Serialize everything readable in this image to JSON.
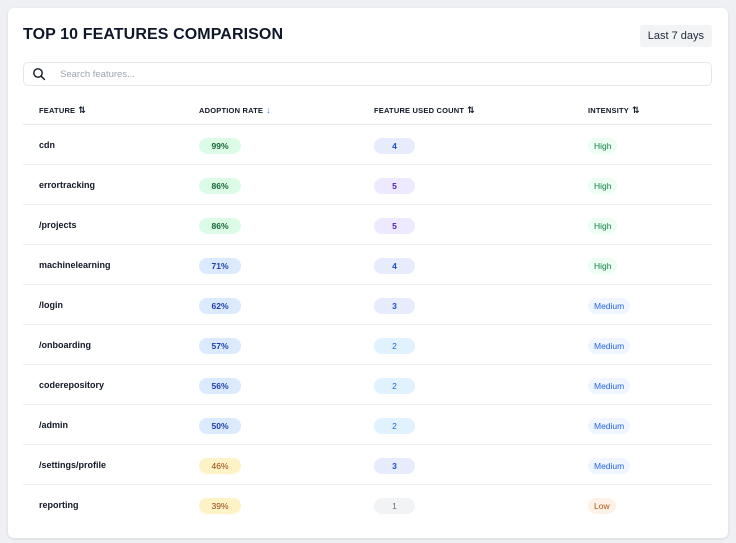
{
  "header": {
    "title": "TOP 10 FEATURES COMPARISON",
    "range_label": "Last 7 days"
  },
  "search": {
    "placeholder": "Search features...",
    "value": ""
  },
  "table": {
    "columns": [
      {
        "label": "FEATURE",
        "sort": "⇅"
      },
      {
        "label": "ADOPTION RATE",
        "sort": "↓"
      },
      {
        "label": "FEATURE USED COUNT",
        "sort": "⇅"
      },
      {
        "label": "INTENSITY",
        "sort": "⇅"
      }
    ],
    "rows": [
      {
        "feature": "cdn",
        "rate": "99%",
        "rate_color": "green",
        "count": "4",
        "count_color": "blue",
        "intensity": "High",
        "intensity_level": "high"
      },
      {
        "feature": "errortracking",
        "rate": "86%",
        "rate_color": "green",
        "count": "5",
        "count_color": "purple",
        "intensity": "High",
        "intensity_level": "high"
      },
      {
        "feature": "/projects",
        "rate": "86%",
        "rate_color": "green",
        "count": "5",
        "count_color": "purple",
        "intensity": "High",
        "intensity_level": "high"
      },
      {
        "feature": "machinelearning",
        "rate": "71%",
        "rate_color": "blue",
        "count": "4",
        "count_color": "blue",
        "intensity": "High",
        "intensity_level": "high"
      },
      {
        "feature": "/login",
        "rate": "62%",
        "rate_color": "blue",
        "count": "3",
        "count_color": "blue",
        "intensity": "Medium",
        "intensity_level": "medium"
      },
      {
        "feature": "/onboarding",
        "rate": "57%",
        "rate_color": "blue",
        "count": "2",
        "count_color": "light",
        "intensity": "Medium",
        "intensity_level": "medium"
      },
      {
        "feature": "coderepository",
        "rate": "56%",
        "rate_color": "blue",
        "count": "2",
        "count_color": "light",
        "intensity": "Medium",
        "intensity_level": "medium"
      },
      {
        "feature": "/admin",
        "rate": "50%",
        "rate_color": "blue",
        "count": "2",
        "count_color": "light",
        "intensity": "Medium",
        "intensity_level": "medium"
      },
      {
        "feature": "/settings/profile",
        "rate": "46%",
        "rate_color": "yellow",
        "count": "3",
        "count_color": "blue",
        "intensity": "Medium",
        "intensity_level": "medium"
      },
      {
        "feature": "reporting",
        "rate": "39%",
        "rate_color": "yellow",
        "count": "1",
        "count_color": "gray",
        "intensity": "Low",
        "intensity_level": "low"
      }
    ]
  },
  "icons": {
    "search": "search-icon"
  }
}
